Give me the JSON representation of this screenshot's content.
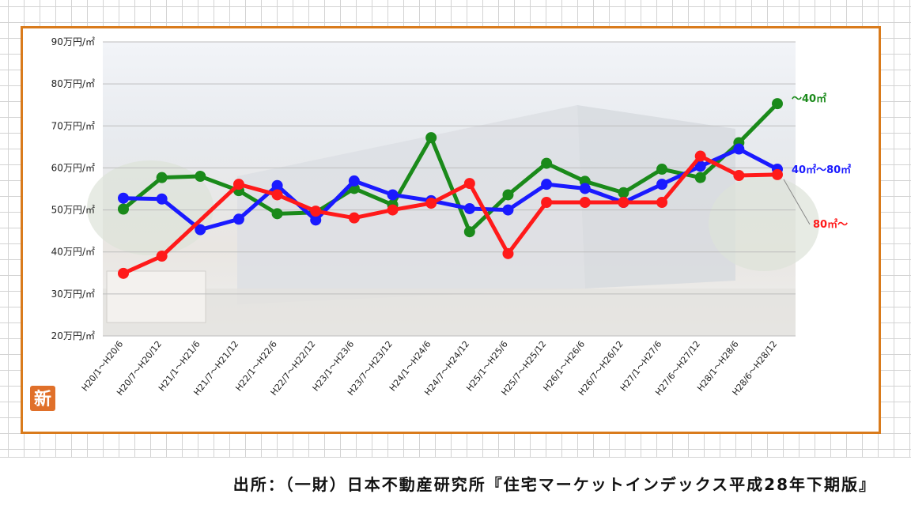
{
  "chart_data": {
    "type": "line",
    "title": "",
    "xlabel": "",
    "ylabel": "",
    "categories": [
      "H20/1～H20/6",
      "H20/7～H20/12",
      "H21/1～H21/6",
      "H21/7～H21/12",
      "H22/1～H22/6",
      "H22/7～H22/12",
      "H23/1～H23/6",
      "H23/7～H23/12",
      "H24/1～H24/6",
      "H24/7～H24/12",
      "H25/1～H25/6",
      "H25/7～H25/12",
      "H26/1～H26/6",
      "H26/7～H26/12",
      "H27/1～H27/6",
      "H27/6～H27/12",
      "H28/1～H28/6",
      "H28/6～H28/12"
    ],
    "ylim": [
      20,
      90
    ],
    "yticks": [
      20,
      30,
      40,
      50,
      60,
      70,
      80,
      90
    ],
    "ytick_labels": [
      "20万円/㎡",
      "30万円/㎡",
      "40万円/㎡",
      "50万円/㎡",
      "60万円/㎡",
      "70万円/㎡",
      "80万円/㎡",
      "90万円/㎡"
    ],
    "grid": true,
    "legend": "right-of-lines",
    "series": [
      {
        "name": "～40㎡",
        "color": "#1a8a1a",
        "values": [
          50.2,
          57.7,
          58.0,
          54.6,
          49.1,
          49.4,
          55.1,
          51.2,
          67.2,
          44.8,
          53.6,
          61.1,
          56.8,
          54.1,
          59.7,
          57.7,
          66.0,
          75.3
        ]
      },
      {
        "name": "40㎡～80㎡",
        "color": "#1a1aff",
        "values": [
          52.8,
          52.6,
          45.3,
          47.8,
          55.8,
          47.6,
          56.9,
          53.6,
          52.2,
          50.3,
          50.0,
          56.1,
          55.1,
          51.8,
          56.1,
          60.4,
          64.5,
          59.7
        ]
      },
      {
        "name": "80㎡～",
        "color": "#ff1a1a",
        "values": [
          34.9,
          39.0,
          null,
          56.1,
          53.6,
          49.7,
          48.1,
          50.0,
          51.6,
          56.3,
          39.6,
          51.8,
          51.8,
          51.8,
          51.8,
          62.8,
          58.2,
          58.4
        ]
      }
    ]
  },
  "source": {
    "text": "出所：（一財）日本不動産研究所『住宅マーケットインデックス平成28年下期版』"
  },
  "badge": {
    "text": "新",
    "color": "#e0702a"
  }
}
